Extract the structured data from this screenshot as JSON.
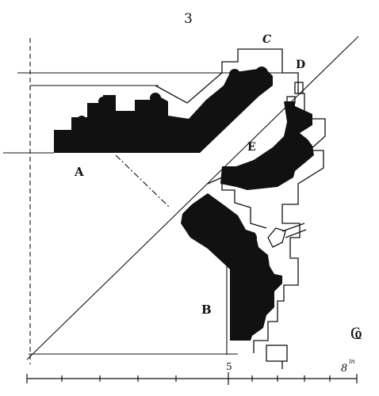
{
  "figure": {
    "number": "3",
    "labels": {
      "a": "A",
      "b": "B",
      "c": "C",
      "d": "D",
      "e": "E"
    },
    "scale": {
      "start": "5",
      "end": "8",
      "unit": "in"
    },
    "corner_mark": "Ҩ"
  },
  "colors": {
    "ink": "#111111",
    "paper": "#ffffff"
  }
}
